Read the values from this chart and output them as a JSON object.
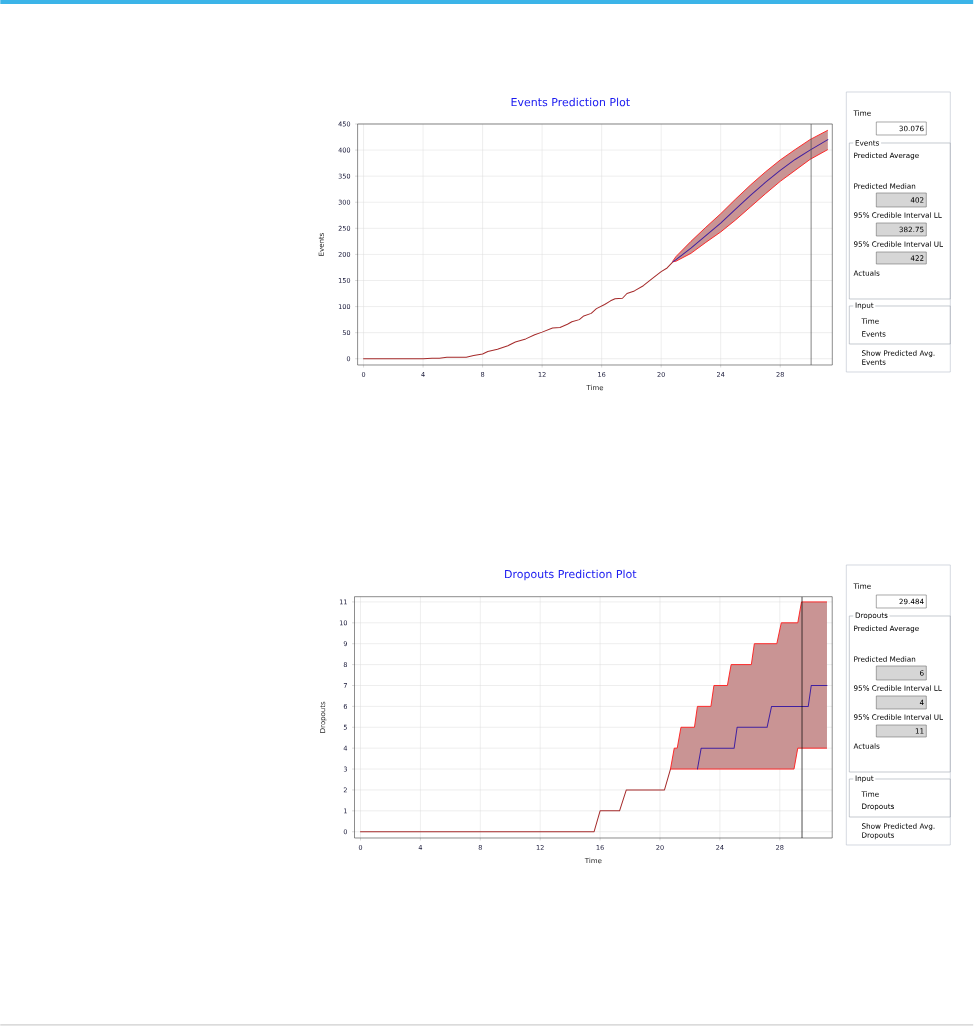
{
  "chart_data": [
    {
      "type": "line",
      "title": "Events Prediction Plot",
      "xlabel": "Time",
      "ylabel": "Events",
      "xlim": [
        -0.4,
        31.5
      ],
      "ylim": [
        -12,
        450
      ],
      "xticks": [
        0,
        4,
        8,
        12,
        16,
        20,
        24,
        28
      ],
      "yticks": [
        0,
        50,
        100,
        150,
        200,
        250,
        300,
        350,
        400,
        450
      ],
      "grid": true,
      "series": [
        {
          "color": "#a52a2a",
          "x": [
            0,
            4,
            4.6,
            5.1,
            5.6,
            6.9,
            7.4,
            8,
            8.35,
            9,
            9.7,
            10.2,
            10.9,
            11.5,
            12,
            12.7,
            13.2,
            13.7,
            14,
            14.5,
            14.8,
            15.3,
            15.65,
            16.2,
            16.6,
            16.9,
            17.4,
            17.7,
            18.2,
            18.8,
            19.5,
            20,
            20.4,
            20.8
          ],
          "values": [
            0,
            0,
            1,
            1,
            3,
            3,
            6,
            9,
            14,
            18,
            25,
            32,
            38,
            46,
            51,
            59,
            60,
            66,
            71,
            75,
            82,
            87,
            96,
            104,
            111,
            115,
            116,
            125,
            130,
            140,
            156,
            167,
            174,
            186
          ]
        },
        {
          "color": "#4020a0",
          "x": [
            20.8,
            21,
            22,
            23,
            24,
            25,
            26,
            27,
            28,
            29,
            30,
            31.2
          ],
          "values": [
            186,
            190,
            212,
            236,
            260,
            287,
            313,
            338,
            361,
            382,
            400,
            420
          ],
          "lower": [
            186,
            187,
            202,
            223,
            243,
            266,
            291,
            316,
            340,
            361,
            382,
            401
          ],
          "upper": [
            188,
            196,
            225,
            252,
            278,
            306,
            333,
            358,
            381,
            401,
            420,
            438
          ]
        }
      ],
      "ref_lines": [
        {
          "axis": "x",
          "value": 30.076,
          "color": "#505050"
        }
      ]
    },
    {
      "type": "other",
      "annotations": [
        "Time",
        "30.076",
        "Events",
        "Predicted Average",
        "Predicted Median",
        "402",
        "95% Credible Interval LL",
        "382.75",
        "95% Credible Interval UL",
        "422",
        "Actuals",
        "Input",
        "Time",
        "Events",
        "Show Predicted Avg. Events"
      ]
    },
    {
      "type": "line",
      "title": "Dropouts Prediction Plot",
      "xlabel": "Time",
      "ylabel": "Dropouts",
      "xlim": [
        -0.4,
        31.5
      ],
      "ylim": [
        -0.3,
        11.25
      ],
      "xticks": [
        0,
        4,
        8,
        12,
        16,
        20,
        24,
        28
      ],
      "yticks": [
        0,
        1,
        2,
        3,
        4,
        5,
        6,
        7,
        8,
        9,
        10,
        11
      ],
      "grid": true,
      "series": [
        {
          "color": "#a52a2a",
          "x": [
            0,
            15.6,
            16,
            17.3,
            17.75,
            20.3,
            20.7
          ],
          "values": [
            0,
            0,
            1,
            1,
            2,
            2,
            3
          ]
        },
        {
          "color": "#4020a0",
          "x": [
            20.7,
            20.95,
            21.15,
            21.4,
            22.3,
            22.5,
            22.75,
            23.4,
            23.6,
            24.5,
            24.75,
            24.95,
            25.15,
            26.1,
            26.3,
            27.15,
            27.45,
            27.8,
            28.1,
            28.95,
            29.2,
            29.45,
            29.9,
            30.1,
            31.15
          ],
          "values": [
            null,
            null,
            null,
            null,
            null,
            3,
            4,
            4,
            4,
            4,
            4,
            4,
            5,
            5,
            5,
            5,
            6,
            6,
            6,
            6,
            6,
            6,
            6,
            7,
            7
          ],
          "lower": [
            3,
            3,
            3,
            3,
            3,
            3,
            3,
            3,
            3,
            3,
            3,
            3,
            3,
            3,
            3,
            3,
            3,
            3,
            3,
            3,
            4,
            4,
            4,
            4,
            4
          ],
          "upper": [
            3,
            4,
            4,
            5,
            5,
            6,
            6,
            6,
            7,
            7,
            8,
            8,
            8,
            8,
            9,
            9,
            9,
            9,
            10,
            10,
            10,
            11,
            11,
            11,
            11
          ]
        }
      ],
      "ref_lines": [
        {
          "axis": "x",
          "value": 29.484,
          "color": "#000000"
        }
      ]
    },
    {
      "type": "other",
      "annotations": [
        "Time",
        "29.484",
        "Dropouts",
        "Predicted Average",
        "Predicted Median",
        "6",
        "95% Credible Interval LL",
        "4",
        "95% Credible Interval UL",
        "11",
        "Actuals",
        "Input",
        "Time",
        "Dropouts",
        "Show Predicted Avg. Dropouts"
      ]
    }
  ]
}
